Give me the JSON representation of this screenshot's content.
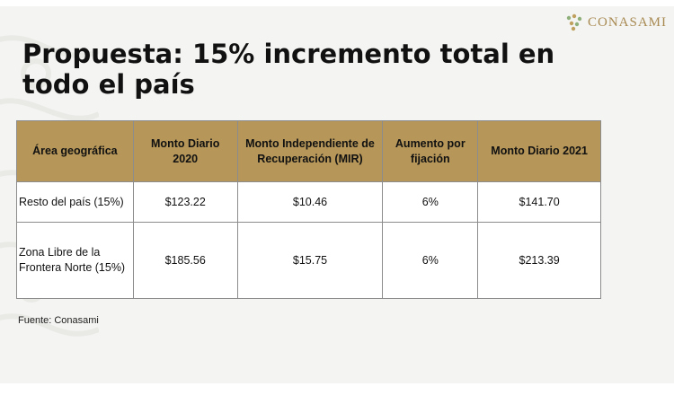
{
  "logo": {
    "text": "CONASAMI",
    "icon": "conasami-logo-icon"
  },
  "title": "Propuesta: 15% incremento total en todo el país",
  "table": {
    "headers": [
      "Área geográfica",
      "Monto Diario 2020",
      "Monto Independiente de Recuperación (MIR)",
      "Aumento por fijación",
      "Monto Diario 2021"
    ],
    "rows": [
      [
        "Resto del país (15%)",
        "$123.22",
        "$10.46",
        "6%",
        "$141.70"
      ],
      [
        "Zona Libre de la Frontera Norte (15%)",
        "$185.56",
        "$15.75",
        "6%",
        "$213.39"
      ]
    ]
  },
  "source": "Fuente: Conasami",
  "colors": {
    "header_bg": "#b69759",
    "logo_text": "#a88a52",
    "slide_bg": "#f4f4f2"
  }
}
